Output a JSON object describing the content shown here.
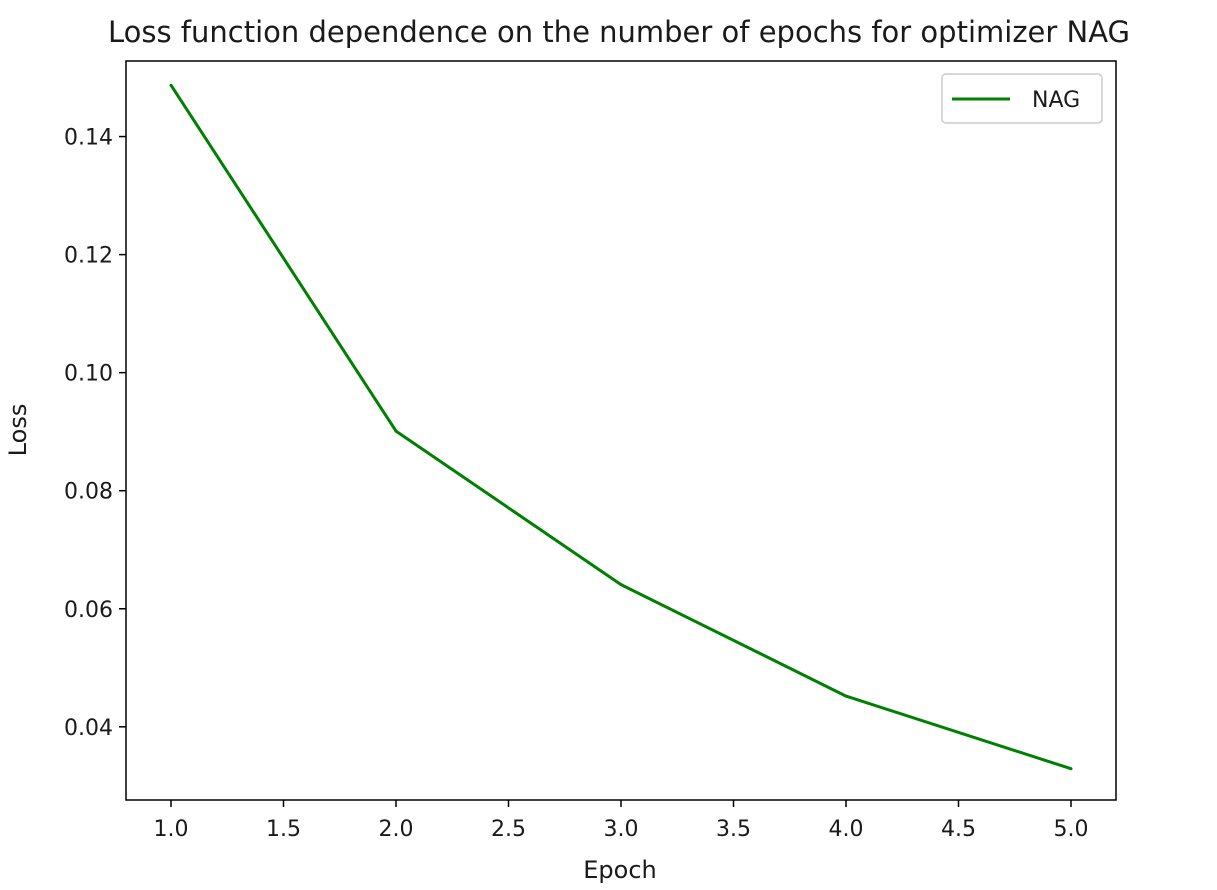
{
  "chart_data": {
    "type": "line",
    "title": "Loss function dependence on the number of epochs for optimizer NAG",
    "xlabel": "Epoch",
    "ylabel": "Loss",
    "xlim": [
      0.8,
      5.2
    ],
    "ylim": [
      0.0276,
      0.1528
    ],
    "xticks": [
      1.0,
      1.5,
      2.0,
      2.5,
      3.0,
      3.5,
      4.0,
      4.5,
      5.0
    ],
    "xtick_labels": [
      "1.0",
      "1.5",
      "2.0",
      "2.5",
      "3.0",
      "3.5",
      "4.0",
      "4.5",
      "5.0"
    ],
    "yticks": [
      0.04,
      0.06,
      0.08,
      0.1,
      0.12,
      0.14
    ],
    "ytick_labels": [
      "0.04",
      "0.06",
      "0.08",
      "0.10",
      "0.12",
      "0.14"
    ],
    "grid": false,
    "legend_position": "top-right",
    "series": [
      {
        "name": "NAG",
        "color": "#008000",
        "x": [
          1,
          2,
          3,
          4,
          5
        ],
        "y": [
          0.1487,
          0.0901,
          0.0641,
          0.0452,
          0.0329
        ]
      }
    ]
  }
}
